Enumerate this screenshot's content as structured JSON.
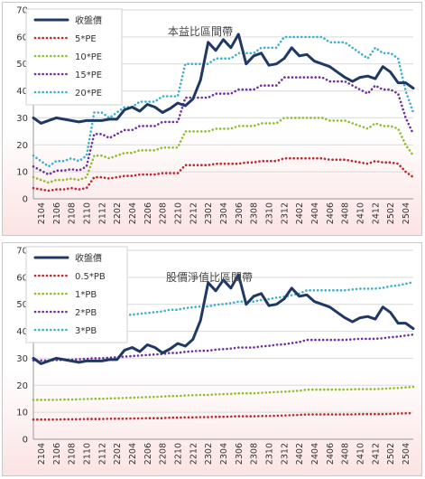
{
  "chart_data": [
    {
      "type": "line",
      "title": "本益比區間帶",
      "ylim": [
        0,
        70
      ],
      "yticks": [
        0,
        10,
        20,
        30,
        40,
        50,
        60,
        70
      ],
      "categories": [
        "2103",
        "2104",
        "2105",
        "2106",
        "2107",
        "2108",
        "2109",
        "2110",
        "2111",
        "2112",
        "2201",
        "2202",
        "2203",
        "2204",
        "2205",
        "2206",
        "2207",
        "2208",
        "2209",
        "2210",
        "2211",
        "2212",
        "2301",
        "2302",
        "2303",
        "2304",
        "2305",
        "2306",
        "2307",
        "2308",
        "2309",
        "2310",
        "2311",
        "2312",
        "2401",
        "2402",
        "2403",
        "2404",
        "2405",
        "2406",
        "2407",
        "2408",
        "2409",
        "2410",
        "2411",
        "2412",
        "2501",
        "2502",
        "2503",
        "2504",
        "2505"
      ],
      "xticklabels": [
        "2104",
        "2106",
        "2108",
        "2110",
        "2112",
        "2202",
        "2204",
        "2206",
        "2208",
        "2210",
        "2212",
        "2302",
        "2304",
        "2306",
        "2308",
        "2310",
        "2312",
        "2402",
        "2404",
        "2406",
        "2408",
        "2410",
        "2412",
        "2502",
        "2504"
      ],
      "legend_position": "top-left",
      "series": [
        {
          "name": "收盤價",
          "color": "#1f3864",
          "style": "solid",
          "values": [
            30,
            28,
            29,
            30,
            29.5,
            29,
            28.5,
            29,
            29,
            29,
            29.5,
            29.5,
            33,
            34,
            32.5,
            35,
            34,
            32,
            33.5,
            35.5,
            34.5,
            37,
            44,
            58,
            55,
            59,
            56,
            61,
            50,
            53,
            54,
            49.5,
            50,
            52,
            56,
            53,
            53.5,
            51,
            50,
            49,
            47,
            45,
            43.5,
            45,
            45.5,
            44.5,
            49,
            47,
            43,
            43,
            41
          ]
        },
        {
          "name": "5*PE",
          "color": "#c0282d",
          "style": "dotted",
          "values": [
            4,
            3.5,
            3,
            3.5,
            3.5,
            4,
            3.5,
            4,
            8,
            8,
            7.5,
            8,
            8.5,
            8.5,
            9,
            9,
            9,
            9.5,
            9.5,
            9.5,
            12.5,
            12.5,
            12.5,
            12.5,
            13,
            13,
            13,
            13,
            13.5,
            13.5,
            14,
            14,
            14,
            15,
            15,
            15,
            15,
            15,
            15,
            14.5,
            14.5,
            14.5,
            14,
            13.5,
            13,
            14,
            13.5,
            13.5,
            13,
            10,
            8
          ]
        },
        {
          "name": "10*PE",
          "color": "#8fbe2f",
          "style": "dotted",
          "values": [
            8,
            7,
            6,
            7,
            7,
            7.5,
            7,
            8,
            16,
            16,
            15,
            16,
            17,
            17,
            18,
            18,
            18,
            19,
            19,
            19,
            25,
            25,
            25,
            25,
            26,
            26,
            26,
            27,
            27,
            27,
            28,
            28,
            28,
            30,
            30,
            30,
            30,
            30,
            30,
            29,
            29,
            29,
            28,
            27,
            26,
            28,
            27,
            27,
            26,
            20,
            16
          ]
        },
        {
          "name": "15*PE",
          "color": "#7030a0",
          "style": "dotted",
          "values": [
            12,
            10.5,
            9,
            10.5,
            10.5,
            11,
            10.5,
            12,
            24,
            24,
            22.5,
            24,
            25.5,
            25.5,
            27,
            27,
            27,
            28.5,
            28.5,
            28.5,
            37.5,
            37.5,
            37.5,
            37.5,
            39,
            39,
            39,
            40.5,
            40.5,
            40.5,
            42,
            42,
            42,
            45,
            45,
            45,
            45,
            45,
            45,
            43.5,
            43.5,
            43.5,
            42,
            40.5,
            39,
            42,
            40.5,
            40.5,
            39,
            30,
            24
          ]
        },
        {
          "name": "20*PE",
          "color": "#3fb0c9",
          "style": "dotted",
          "values": [
            16,
            14,
            12,
            14,
            14,
            15,
            14,
            16,
            32,
            32,
            30,
            32,
            34,
            34,
            36,
            36,
            36,
            38,
            38,
            38,
            50,
            50,
            50,
            50,
            52,
            52,
            52,
            54,
            54,
            54,
            56,
            56,
            56,
            60,
            60,
            60,
            60,
            60,
            60,
            58,
            58,
            58,
            56,
            54,
            52,
            56,
            54,
            54,
            52,
            40,
            32
          ]
        }
      ]
    },
    {
      "type": "line",
      "title": "股價淨值比區間帶",
      "ylim": [
        0,
        70
      ],
      "yticks": [
        0,
        10,
        20,
        30,
        40,
        50,
        60,
        70
      ],
      "categories": [
        "2103",
        "2104",
        "2105",
        "2106",
        "2107",
        "2108",
        "2109",
        "2110",
        "2111",
        "2112",
        "2201",
        "2202",
        "2203",
        "2204",
        "2205",
        "2206",
        "2207",
        "2208",
        "2209",
        "2210",
        "2211",
        "2212",
        "2301",
        "2302",
        "2303",
        "2304",
        "2305",
        "2306",
        "2307",
        "2308",
        "2309",
        "2310",
        "2311",
        "2312",
        "2401",
        "2402",
        "2403",
        "2404",
        "2405",
        "2406",
        "2407",
        "2408",
        "2409",
        "2410",
        "2411",
        "2412",
        "2501",
        "2502",
        "2503",
        "2504",
        "2505"
      ],
      "xticklabels": [
        "2104",
        "2106",
        "2108",
        "2110",
        "2112",
        "2202",
        "2204",
        "2206",
        "2208",
        "2210",
        "2212",
        "2302",
        "2304",
        "2306",
        "2308",
        "2310",
        "2312",
        "2402",
        "2404",
        "2406",
        "2408",
        "2410",
        "2412",
        "2502",
        "2504"
      ],
      "legend_position": "top-left",
      "series": [
        {
          "name": "收盤價",
          "color": "#1f3864",
          "style": "solid",
          "values": [
            30,
            28,
            29,
            30,
            29.5,
            29,
            28.5,
            29,
            29,
            29,
            29.5,
            29.5,
            33,
            34,
            32.5,
            35,
            34,
            32,
            33.5,
            35.5,
            34.5,
            37,
            44,
            58,
            55,
            59,
            56,
            61,
            50,
            53,
            54,
            49.5,
            50,
            52,
            56,
            53,
            53.5,
            51,
            50,
            49,
            47,
            45,
            43.5,
            45,
            45.5,
            44.5,
            49,
            47,
            43,
            43,
            41
          ]
        },
        {
          "name": "0.5*PB",
          "color": "#c0282d",
          "style": "dotted",
          "values": [
            7.3,
            7.3,
            7.3,
            7.3,
            7.4,
            7.4,
            7.4,
            7.5,
            7.5,
            7.5,
            7.6,
            7.6,
            7.6,
            7.7,
            7.7,
            7.8,
            7.8,
            7.8,
            8,
            8,
            8.1,
            8.1,
            8.2,
            8.2,
            8.3,
            8.3,
            8.4,
            8.5,
            8.5,
            8.5,
            8.6,
            8.6,
            8.7,
            8.8,
            8.9,
            9,
            9.2,
            9.2,
            9.2,
            9.2,
            9.2,
            9.2,
            9.2,
            9.3,
            9.3,
            9.3,
            9.3,
            9.4,
            9.5,
            9.6,
            9.7
          ]
        },
        {
          "name": "1*PB",
          "color": "#8fbe2f",
          "style": "dotted",
          "values": [
            14.6,
            14.6,
            14.6,
            14.6,
            14.7,
            14.7,
            14.8,
            14.9,
            15,
            15,
            15.1,
            15.2,
            15.3,
            15.4,
            15.5,
            15.6,
            15.7,
            15.8,
            16,
            16,
            16.2,
            16.3,
            16.4,
            16.4,
            16.6,
            16.7,
            16.8,
            17,
            17,
            17,
            17.2,
            17.3,
            17.5,
            17.6,
            17.8,
            18,
            18.4,
            18.4,
            18.4,
            18.4,
            18.4,
            18.4,
            18.5,
            18.6,
            18.6,
            18.6,
            18.7,
            18.9,
            19,
            19.2,
            19.4
          ]
        },
        {
          "name": "2*PB",
          "color": "#7030a0",
          "style": "dotted",
          "values": [
            29.2,
            29.2,
            29.2,
            29.3,
            29.4,
            29.5,
            29.6,
            29.8,
            30,
            30,
            30.2,
            30.4,
            30.6,
            30.8,
            31,
            31.2,
            31.4,
            31.6,
            32,
            32,
            32.4,
            32.6,
            32.8,
            32.8,
            33.2,
            33.4,
            33.6,
            34,
            34,
            34,
            34.4,
            34.6,
            35,
            35.2,
            35.6,
            36,
            36.8,
            36.8,
            36.8,
            36.8,
            36.8,
            36.8,
            37,
            37.2,
            37.2,
            37.2,
            37.4,
            37.8,
            38,
            38.4,
            38.8
          ]
        },
        {
          "name": "3*PB",
          "color": "#3fb0c9",
          "style": "dotted",
          "values": [
            43.8,
            43.8,
            43.8,
            43.9,
            44.1,
            44.2,
            44.4,
            44.7,
            45,
            45,
            45.3,
            45.6,
            45.9,
            46.2,
            46.5,
            46.8,
            47.1,
            47.4,
            48,
            48,
            48.6,
            48.9,
            49.2,
            49.2,
            49.8,
            50.1,
            50.4,
            51,
            51,
            51,
            51.6,
            51.9,
            52.5,
            52.8,
            53.4,
            54,
            55.2,
            55.2,
            55.2,
            55.2,
            55.2,
            55.2,
            55.5,
            55.8,
            55.8,
            55.8,
            56.1,
            56.7,
            57,
            57.6,
            58.2
          ]
        }
      ]
    }
  ]
}
